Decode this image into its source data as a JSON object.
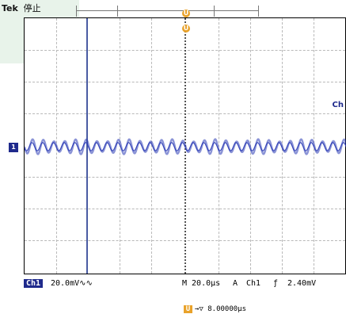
{
  "header": {
    "brand": "Tek",
    "state": "停止"
  },
  "markers": {
    "trigger": "U",
    "channel_ref": "1",
    "channel_side": "Ch"
  },
  "status": {
    "channel_badge": "Ch1",
    "volts_div": "20.0mV∿∿",
    "time_div": "M 20.0μs",
    "trigger_mode": "A",
    "trigger_source": "Ch1",
    "trigger_slope": "ƒ",
    "trigger_level": "2.40mV"
  },
  "readout": {
    "icon": "U",
    "value": "→▽ 8.00000μs"
  },
  "colors": {
    "trace": "#2a3bb5",
    "trigger": "#e9a22a",
    "channel": "#1f2a8c"
  }
}
